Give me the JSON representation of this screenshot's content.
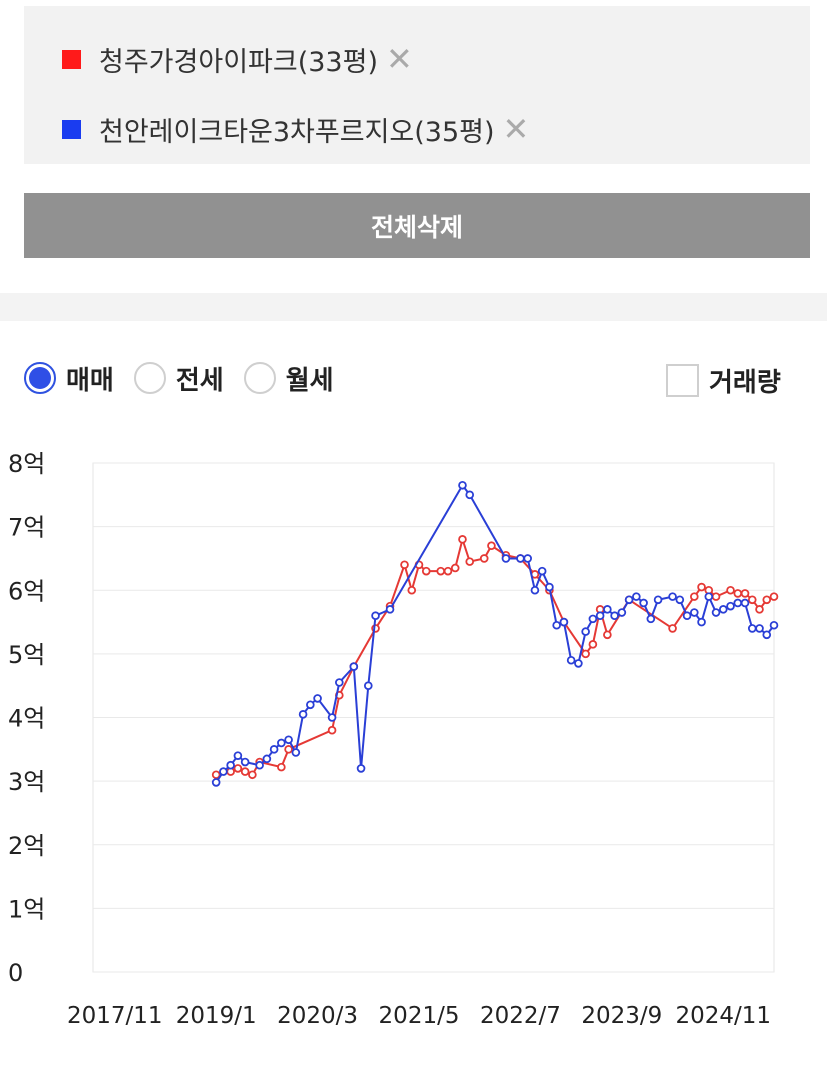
{
  "compare_list": {
    "items": [
      {
        "label": "청주가경아이파크(33평)",
        "color": "#ff1a1a"
      },
      {
        "label": "천안레이크타운3차푸르지오(35평)",
        "color": "#1a3cf0"
      }
    ],
    "remove_symbol": "✕"
  },
  "delete_all_label": "전체삭제",
  "trade_types": {
    "options": [
      "매매",
      "전세",
      "월세"
    ],
    "selected": "매매"
  },
  "volume_label": "거래량",
  "volume_checked": false,
  "chart_data": {
    "type": "line",
    "title": "",
    "xlabel": "",
    "ylabel": "",
    "y_unit": "억",
    "ylim": [
      0,
      8
    ],
    "y_ticks": [
      "0",
      "1억",
      "2억",
      "3억",
      "4억",
      "5억",
      "6억",
      "7억",
      "8억"
    ],
    "x_ticks": [
      "2017/11",
      "2019/1",
      "2020/3",
      "2021/5",
      "2022/7",
      "2023/9",
      "2024/11"
    ],
    "xlim": [
      "2017-11",
      "2025-05"
    ],
    "grid": true,
    "legend": "none",
    "series": [
      {
        "name": "청주가경아이파크(33평)",
        "color": "#e53935",
        "points": [
          [
            "2019-01",
            3.1
          ],
          [
            "2019-03",
            3.15
          ],
          [
            "2019-04",
            3.2
          ],
          [
            "2019-05",
            3.15
          ],
          [
            "2019-06",
            3.1
          ],
          [
            "2019-07",
            3.3
          ],
          [
            "2019-10",
            3.22
          ],
          [
            "2019-11",
            3.5
          ],
          [
            "2020-05",
            3.8
          ],
          [
            "2020-06",
            4.35
          ],
          [
            "2020-08",
            4.8
          ],
          [
            "2020-11",
            5.4
          ],
          [
            "2021-01",
            5.75
          ],
          [
            "2021-03",
            6.4
          ],
          [
            "2021-04",
            6.0
          ],
          [
            "2021-05",
            6.4
          ],
          [
            "2021-06",
            6.3
          ],
          [
            "2021-08",
            6.3
          ],
          [
            "2021-09",
            6.3
          ],
          [
            "2021-10",
            6.35
          ],
          [
            "2021-11",
            6.8
          ],
          [
            "2021-12",
            6.45
          ],
          [
            "2022-02",
            6.5
          ],
          [
            "2022-03",
            6.7
          ],
          [
            "2022-05",
            6.55
          ],
          [
            "2022-07",
            6.5
          ],
          [
            "2022-09",
            6.25
          ],
          [
            "2022-11",
            6.0
          ],
          [
            "2023-01",
            5.5
          ],
          [
            "2023-04",
            5.0
          ],
          [
            "2023-05",
            5.15
          ],
          [
            "2023-06",
            5.7
          ],
          [
            "2023-07",
            5.3
          ],
          [
            "2023-10",
            5.85
          ],
          [
            "2024-04",
            5.4
          ],
          [
            "2024-07",
            5.9
          ],
          [
            "2024-08",
            6.05
          ],
          [
            "2024-09",
            6.0
          ],
          [
            "2024-10",
            5.9
          ],
          [
            "2024-12",
            6.0
          ],
          [
            "2025-01",
            5.95
          ],
          [
            "2025-02",
            5.95
          ],
          [
            "2025-03",
            5.85
          ],
          [
            "2025-04",
            5.7
          ],
          [
            "2025-05",
            5.85
          ],
          [
            "2025-06",
            5.9
          ]
        ]
      },
      {
        "name": "천안레이크타운3차푸르지오(35평)",
        "color": "#2a3fd6",
        "points": [
          [
            "2019-01",
            2.98
          ],
          [
            "2019-02",
            3.15
          ],
          [
            "2019-03",
            3.25
          ],
          [
            "2019-04",
            3.4
          ],
          [
            "2019-05",
            3.3
          ],
          [
            "2019-07",
            3.25
          ],
          [
            "2019-08",
            3.35
          ],
          [
            "2019-09",
            3.5
          ],
          [
            "2019-10",
            3.6
          ],
          [
            "2019-11",
            3.65
          ],
          [
            "2019-12",
            3.45
          ],
          [
            "2020-01",
            4.05
          ],
          [
            "2020-02",
            4.2
          ],
          [
            "2020-03",
            4.3
          ],
          [
            "2020-05",
            4.0
          ],
          [
            "2020-06",
            4.55
          ],
          [
            "2020-08",
            4.8
          ],
          [
            "2020-09",
            3.2
          ],
          [
            "2020-10",
            4.5
          ],
          [
            "2020-11",
            5.6
          ],
          [
            "2021-01",
            5.7
          ],
          [
            "2021-11",
            7.65
          ],
          [
            "2021-12",
            7.5
          ],
          [
            "2022-05",
            6.5
          ],
          [
            "2022-07",
            6.5
          ],
          [
            "2022-08",
            6.5
          ],
          [
            "2022-09",
            6.0
          ],
          [
            "2022-10",
            6.3
          ],
          [
            "2022-11",
            6.05
          ],
          [
            "2022-12",
            5.45
          ],
          [
            "2023-01",
            5.5
          ],
          [
            "2023-02",
            4.9
          ],
          [
            "2023-03",
            4.85
          ],
          [
            "2023-04",
            5.35
          ],
          [
            "2023-05",
            5.55
          ],
          [
            "2023-06",
            5.6
          ],
          [
            "2023-07",
            5.7
          ],
          [
            "2023-08",
            5.6
          ],
          [
            "2023-09",
            5.65
          ],
          [
            "2023-10",
            5.85
          ],
          [
            "2023-11",
            5.9
          ],
          [
            "2023-12",
            5.8
          ],
          [
            "2024-01",
            5.55
          ],
          [
            "2024-02",
            5.85
          ],
          [
            "2024-04",
            5.9
          ],
          [
            "2024-05",
            5.85
          ],
          [
            "2024-06",
            5.6
          ],
          [
            "2024-07",
            5.65
          ],
          [
            "2024-08",
            5.5
          ],
          [
            "2024-09",
            5.9
          ],
          [
            "2024-10",
            5.65
          ],
          [
            "2024-11",
            5.7
          ],
          [
            "2024-12",
            5.75
          ],
          [
            "2025-01",
            5.8
          ],
          [
            "2025-02",
            5.8
          ],
          [
            "2025-03",
            5.4
          ],
          [
            "2025-04",
            5.4
          ],
          [
            "2025-05",
            5.3
          ],
          [
            "2025-06",
            5.45
          ]
        ]
      }
    ]
  }
}
